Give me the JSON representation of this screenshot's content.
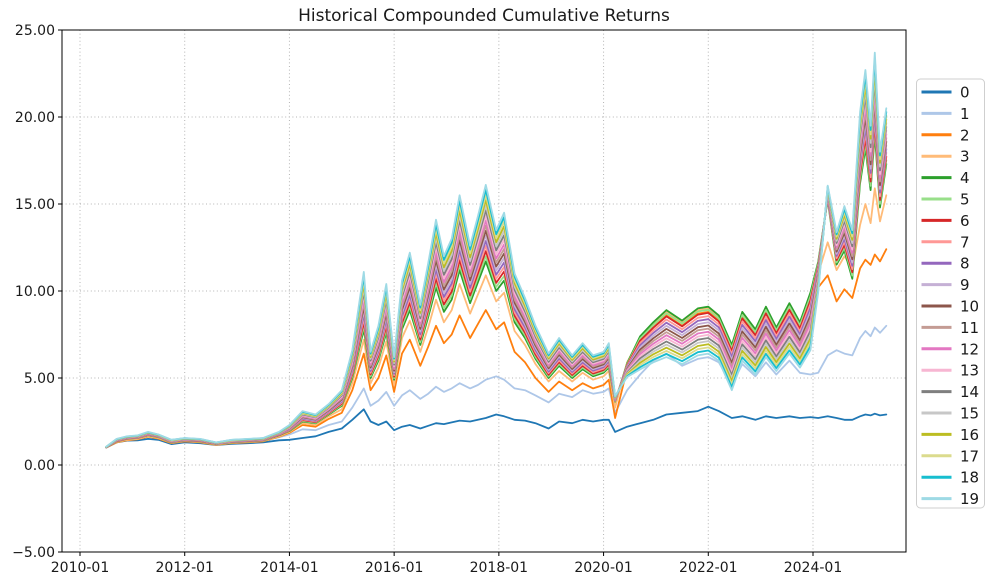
{
  "figure": {
    "title": "Historical Compounded Cumulative Returns",
    "background": "#ffffff"
  },
  "axes": {
    "ylim": [
      -5,
      25
    ],
    "y_ticks": [
      {
        "label": "25.00",
        "value": 25
      },
      {
        "label": "20.00",
        "value": 20
      },
      {
        "label": "15.00",
        "value": 15
      },
      {
        "label": "10.00",
        "value": 10
      },
      {
        "label": "5.00",
        "value": 5
      },
      {
        "label": "0.00",
        "value": 0
      },
      {
        "label": "−5.00",
        "value": -5
      }
    ],
    "x_ticks": [
      {
        "label": "2010-01",
        "year": 2010
      },
      {
        "label": "2012-01",
        "year": 2012
      },
      {
        "label": "2014-01",
        "year": 2014
      },
      {
        "label": "2016-01",
        "year": 2016
      },
      {
        "label": "2018-01",
        "year": 2018
      },
      {
        "label": "2020-01",
        "year": 2020
      },
      {
        "label": "2022-01",
        "year": 2022
      },
      {
        "label": "2024-01",
        "year": 2024
      }
    ],
    "grid": true,
    "grid_color": "#b4b4b4",
    "spine_color": "#000000"
  },
  "legend": {
    "position": "right-outside",
    "labels": [
      "0",
      "1",
      "2",
      "3",
      "4",
      "5",
      "6",
      "7",
      "8",
      "9",
      "10",
      "11",
      "12",
      "13",
      "14",
      "15",
      "16",
      "17",
      "18",
      "19"
    ],
    "border_color": "#cfcfcf",
    "background": "#ffffff"
  },
  "chart_data": {
    "type": "line",
    "title": "Historical Compounded Cumulative Returns",
    "xlabel": "",
    "ylabel": "",
    "ylim": [
      -5,
      25
    ],
    "x_axis_years_visible": [
      2010,
      2025.78
    ],
    "series_names": [
      "0",
      "1",
      "2",
      "3",
      "4",
      "5",
      "6",
      "7",
      "8",
      "9",
      "10",
      "11",
      "12",
      "13",
      "14",
      "15",
      "16",
      "17",
      "18",
      "19"
    ],
    "series_colors": [
      "#1f77b4",
      "#aec7e8",
      "#ff7f0e",
      "#ffbb78",
      "#2ca02c",
      "#98df8a",
      "#d62728",
      "#ff9896",
      "#9467bd",
      "#c5b0d5",
      "#8c564b",
      "#c49c94",
      "#e377c2",
      "#f7b6d2",
      "#7f7f7f",
      "#c7c7c7",
      "#bcbd22",
      "#dbdb8d",
      "#17becf",
      "#9edae5"
    ],
    "x_years": [
      2010.5,
      2010.7,
      2010.9,
      2011.1,
      2011.3,
      2011.5,
      2011.75,
      2012.0,
      2012.3,
      2012.6,
      2012.9,
      2013.2,
      2013.5,
      2013.8,
      2014.0,
      2014.25,
      2014.5,
      2014.75,
      2015.0,
      2015.2,
      2015.42,
      2015.55,
      2015.7,
      2015.85,
      2016.0,
      2016.15,
      2016.3,
      2016.5,
      2016.65,
      2016.8,
      2016.95,
      2017.1,
      2017.25,
      2017.45,
      2017.6,
      2017.75,
      2017.95,
      2018.1,
      2018.3,
      2018.5,
      2018.7,
      2018.95,
      2019.15,
      2019.4,
      2019.6,
      2019.8,
      2020.0,
      2020.1,
      2020.22,
      2020.45,
      2020.7,
      2020.95,
      2021.2,
      2021.5,
      2021.8,
      2022.0,
      2022.2,
      2022.45,
      2022.65,
      2022.9,
      2023.1,
      2023.3,
      2023.55,
      2023.75,
      2023.95,
      2024.1,
      2024.28,
      2024.45,
      2024.6,
      2024.75,
      2024.9,
      2025.0,
      2025.1,
      2025.18,
      2025.28,
      2025.4
    ],
    "explicit_series": {
      "0": [
        1.0,
        1.3,
        1.4,
        1.42,
        1.5,
        1.45,
        1.2,
        1.3,
        1.25,
        1.15,
        1.22,
        1.25,
        1.3,
        1.42,
        1.45,
        1.55,
        1.65,
        1.9,
        2.1,
        2.6,
        3.2,
        2.5,
        2.3,
        2.5,
        2.0,
        2.2,
        2.3,
        2.1,
        2.25,
        2.4,
        2.35,
        2.45,
        2.55,
        2.5,
        2.6,
        2.7,
        2.9,
        2.8,
        2.6,
        2.55,
        2.4,
        2.1,
        2.5,
        2.4,
        2.6,
        2.5,
        2.6,
        2.6,
        1.9,
        2.2,
        2.4,
        2.6,
        2.9,
        3.0,
        3.1,
        3.35,
        3.1,
        2.7,
        2.8,
        2.6,
        2.8,
        2.7,
        2.8,
        2.7,
        2.75,
        2.7,
        2.8,
        2.7,
        2.6,
        2.6,
        2.8,
        2.9,
        2.85,
        2.95,
        2.85,
        2.9
      ],
      "1": [
        1.0,
        1.33,
        1.47,
        1.52,
        1.67,
        1.57,
        1.29,
        1.39,
        1.33,
        1.19,
        1.29,
        1.33,
        1.39,
        1.6,
        1.75,
        2.05,
        2.0,
        2.3,
        2.5,
        3.3,
        4.4,
        3.4,
        3.7,
        4.2,
        3.4,
        4.0,
        4.3,
        3.8,
        4.1,
        4.5,
        4.2,
        4.4,
        4.7,
        4.4,
        4.6,
        4.9,
        5.1,
        4.9,
        4.4,
        4.3,
        4.0,
        3.6,
        4.1,
        3.9,
        4.3,
        4.1,
        4.2,
        4.4,
        3.0,
        4.3,
        5.2,
        6.0,
        6.4,
        5.7,
        6.1,
        6.2,
        5.9,
        4.6,
        5.8,
        5.1,
        5.9,
        5.2,
        6.0,
        5.3,
        5.2,
        5.3,
        6.3,
        6.6,
        6.4,
        6.3,
        7.3,
        7.7,
        7.4,
        7.9,
        7.6,
        8.0
      ],
      "2": [
        1.0,
        1.3,
        1.42,
        1.48,
        1.62,
        1.52,
        1.26,
        1.36,
        1.3,
        1.16,
        1.26,
        1.3,
        1.36,
        1.62,
        1.85,
        2.3,
        2.2,
        2.65,
        3.0,
        4.3,
        6.4,
        4.3,
        5.0,
        6.3,
        4.2,
        6.4,
        7.2,
        5.7,
        6.8,
        8.0,
        7.0,
        7.5,
        8.6,
        7.3,
        8.1,
        8.9,
        7.8,
        8.2,
        6.5,
        5.9,
        5.0,
        4.2,
        4.8,
        4.3,
        4.7,
        4.4,
        4.6,
        4.9,
        2.7,
        5.5,
        7.1,
        7.9,
        8.6,
        8.0,
        8.7,
        8.8,
        8.3,
        6.6,
        8.5,
        7.5,
        8.8,
        7.6,
        9.0,
        7.9,
        9.5,
        10.2,
        10.9,
        9.4,
        10.1,
        9.6,
        11.3,
        11.8,
        11.5,
        12.1,
        11.7,
        12.4
      ],
      "3": [
        1.0,
        1.32,
        1.45,
        1.5,
        1.65,
        1.55,
        1.28,
        1.38,
        1.32,
        1.18,
        1.28,
        1.32,
        1.38,
        1.65,
        1.9,
        2.4,
        2.3,
        2.8,
        3.2,
        4.7,
        7.2,
        4.7,
        5.6,
        7.1,
        4.6,
        7.3,
        8.3,
        6.5,
        7.9,
        9.5,
        8.2,
        8.9,
        10.4,
        8.7,
        9.8,
        10.9,
        9.4,
        9.9,
        7.7,
        6.9,
        5.8,
        4.8,
        5.4,
        4.8,
        5.3,
        4.9,
        5.1,
        5.4,
        3.3,
        5.9,
        7.3,
        8.1,
        8.8,
        8.2,
        8.9,
        9.0,
        8.5,
        6.8,
        8.7,
        7.7,
        9.0,
        7.8,
        9.2,
        8.1,
        9.7,
        11.0,
        12.8,
        11.2,
        12.0,
        11.3,
        13.8,
        15.0,
        13.9,
        15.9,
        14.0,
        15.5
      ]
    },
    "cluster_envelope": {
      "members": [
        "4",
        "5",
        "6",
        "7",
        "8",
        "9",
        "10",
        "11",
        "12",
        "13",
        "14",
        "15",
        "16",
        "17",
        "18",
        "19"
      ],
      "note": "Series 4-19 run tightly bunched between these envelopes; before 2020 higher-numbered series sit higher (19 on top), from mid-2020 to late-2023 the ordering is inverted (19 at bottom), and during the 2024-2025 surge it reverts to ascending order. inversion: 0 = ascending by index, 1 = inverted.",
      "low": [
        1.0,
        1.35,
        1.5,
        1.55,
        1.7,
        1.6,
        1.3,
        1.4,
        1.35,
        1.2,
        1.3,
        1.35,
        1.4,
        1.7,
        1.95,
        2.5,
        2.4,
        2.9,
        3.4,
        5.0,
        7.8,
        5.0,
        6.0,
        7.6,
        4.9,
        7.8,
        8.9,
        6.9,
        8.5,
        10.2,
        8.8,
        9.5,
        11.2,
        9.3,
        10.5,
        11.7,
        10.0,
        10.6,
        8.2,
        7.3,
        6.1,
        5.0,
        5.7,
        5.0,
        5.5,
        5.1,
        5.3,
        5.6,
        3.4,
        4.8,
        5.5,
        5.9,
        6.2,
        5.8,
        6.3,
        6.4,
        6.0,
        4.3,
        6.0,
        5.2,
        6.2,
        5.4,
        6.4,
        5.6,
        6.6,
        8.6,
        13.6,
        10.9,
        12.0,
        10.7,
        16.2,
        18.2,
        15.8,
        19.0,
        14.8,
        17.3
      ],
      "high": [
        1.05,
        1.5,
        1.65,
        1.7,
        1.9,
        1.75,
        1.45,
        1.55,
        1.5,
        1.3,
        1.45,
        1.5,
        1.55,
        1.9,
        2.3,
        3.1,
        2.9,
        3.5,
        4.3,
        6.6,
        11.1,
        6.5,
        8.0,
        10.4,
        6.2,
        10.6,
        12.2,
        9.2,
        11.6,
        14.1,
        12.0,
        13.0,
        15.5,
        12.6,
        14.3,
        16.1,
        13.5,
        14.5,
        11.0,
        9.6,
        8.0,
        6.4,
        7.3,
        6.3,
        7.0,
        6.3,
        6.5,
        7.0,
        4.2,
        6.1,
        7.4,
        8.2,
        8.9,
        8.3,
        9.0,
        9.1,
        8.6,
        6.9,
        8.8,
        7.8,
        9.1,
        7.9,
        9.3,
        8.2,
        9.9,
        13.0,
        17.7,
        14.0,
        15.2,
        13.5,
        20.3,
        22.7,
        19.5,
        23.7,
        18.0,
        20.5
      ],
      "inversion": [
        0,
        0,
        0,
        0,
        0,
        0,
        0,
        0,
        0,
        0,
        0,
        0,
        0,
        0,
        0,
        0,
        0,
        0,
        0,
        0,
        0,
        0,
        0,
        0,
        0,
        0,
        0,
        0,
        0,
        0,
        0,
        0,
        0,
        0,
        0,
        0,
        0,
        0,
        0,
        0,
        0,
        0,
        0,
        0,
        0,
        0,
        0,
        0,
        0.3,
        0.8,
        1,
        1,
        1,
        1,
        1,
        1,
        1,
        1,
        1,
        1,
        1,
        1,
        1,
        1,
        1,
        0.7,
        0.4,
        0.2,
        0.1,
        0,
        0,
        0,
        0,
        0,
        0,
        0
      ]
    }
  }
}
